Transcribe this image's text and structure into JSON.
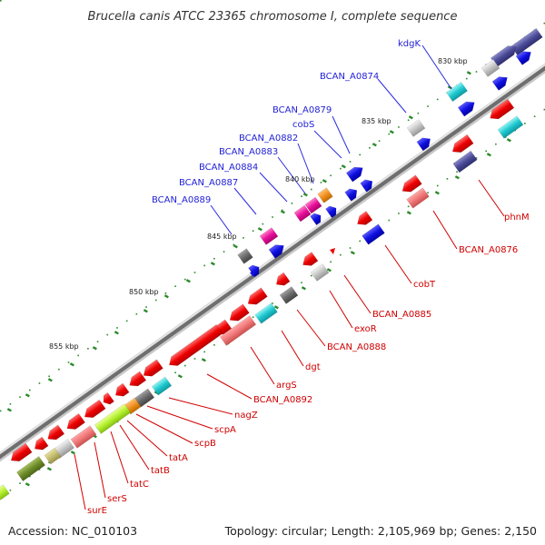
{
  "title": "Brucella canis ATCC 23365 chromosome I, complete sequence",
  "footer": {
    "accession": "Accession: NC_010103",
    "summary": "Topology: circular; Length: 2,105,969 bp; Genes: 2,150"
  },
  "colors": {
    "backbone": "#8a8a8a",
    "forward_label": "#1f1fd6",
    "reverse_label": "#d00000",
    "tick": "#2a8a2a"
  },
  "scale_labels": [
    "830 kbp",
    "835 kbp",
    "840 kbp",
    "845 kbp",
    "850 kbp",
    "855 kbp"
  ],
  "forward_labels": [
    "kdgK",
    "BCAN_A0874",
    "BCAN_A0879",
    "cobS",
    "BCAN_A0882",
    "BCAN_A0883",
    "BCAN_A0884",
    "BCAN_A0887",
    "BCAN_A0889"
  ],
  "reverse_labels": [
    "phnM",
    "BCAN_A0876",
    "cobT",
    "BCAN_A0885",
    "exoR",
    "BCAN_A0888",
    "dgt",
    "argS",
    "BCAN_A0892",
    "nagZ",
    "scpA",
    "scpB",
    "tatA",
    "tatB",
    "tatC",
    "serS",
    "surE"
  ]
}
